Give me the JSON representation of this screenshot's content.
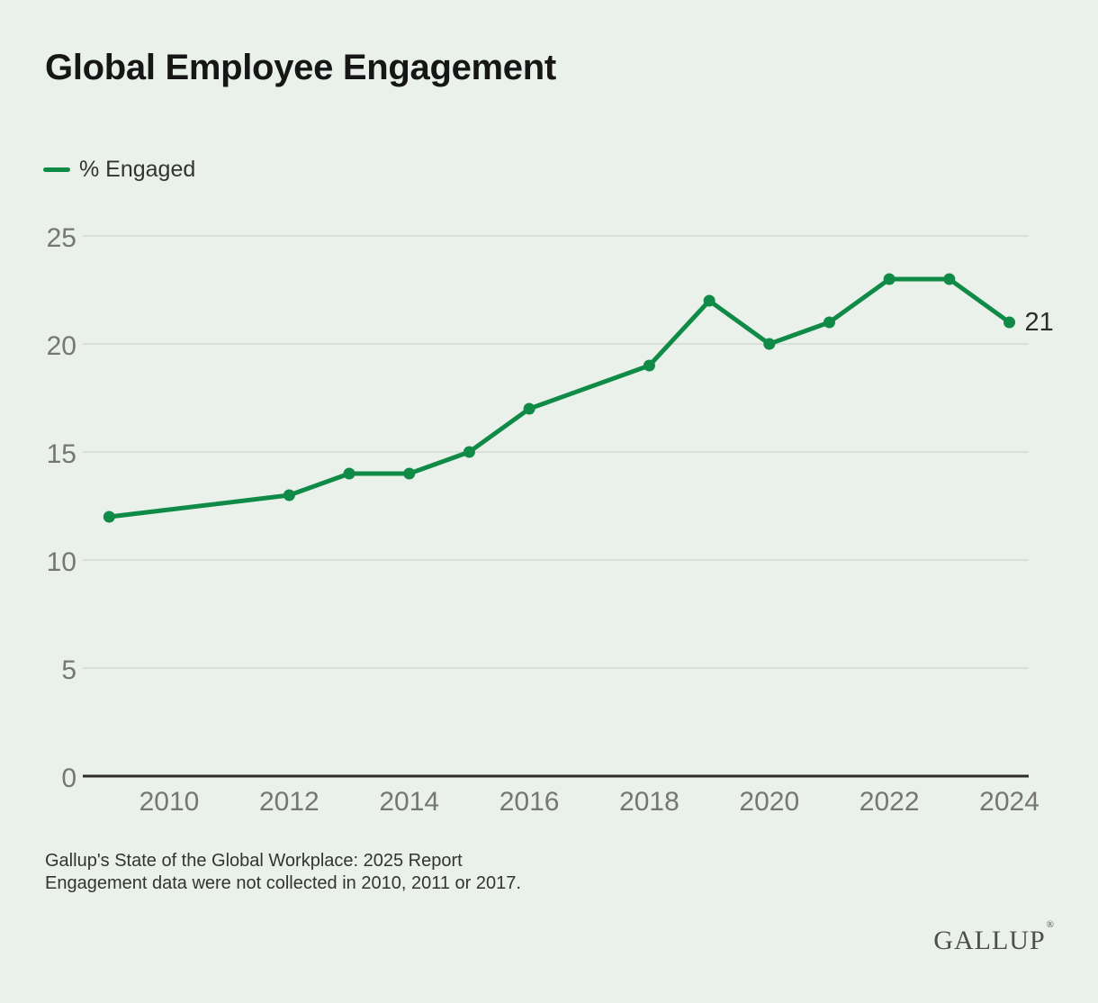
{
  "header": {
    "title": "Global Employee Engagement"
  },
  "legend": {
    "items": [
      {
        "label": "% Engaged"
      }
    ]
  },
  "chart_data": {
    "type": "line",
    "title": "Global Employee Engagement",
    "x": [
      2009,
      2012,
      2013,
      2014,
      2015,
      2016,
      2018,
      2019,
      2020,
      2021,
      2022,
      2023,
      2024
    ],
    "series": [
      {
        "name": "% Engaged",
        "values": [
          12,
          13,
          14,
          14,
          15,
          17,
          19,
          22,
          20,
          21,
          23,
          23,
          21
        ]
      }
    ],
    "end_label": "21",
    "xticks": [
      "2010",
      "2012",
      "2014",
      "2016",
      "2018",
      "2020",
      "2022",
      "2024"
    ],
    "yticks": [
      "0",
      "5",
      "10",
      "15",
      "20",
      "25"
    ],
    "ylim": [
      0,
      25
    ],
    "xlim": [
      2008.6,
      2024.3
    ],
    "grid": "horizontal-only",
    "legend_position": "top-left",
    "missing_years": [
      2010,
      2011,
      2017
    ]
  },
  "footer": {
    "source_line1": "Gallup's State of the Global Workplace: 2025 Report",
    "source_line2": "Engagement data were not collected in 2010, 2011 or 2017.",
    "logo_text": "GALLUP",
    "logo_mark": "®"
  },
  "colors": {
    "background": "#e9f1ea",
    "line": "#0f8b47",
    "grid": "#d9dfd9",
    "axis": "#2d2d2d",
    "tick_text": "#767676",
    "title_text": "#161616",
    "body_text": "#333333",
    "logo_text": "#4e4e4e"
  }
}
